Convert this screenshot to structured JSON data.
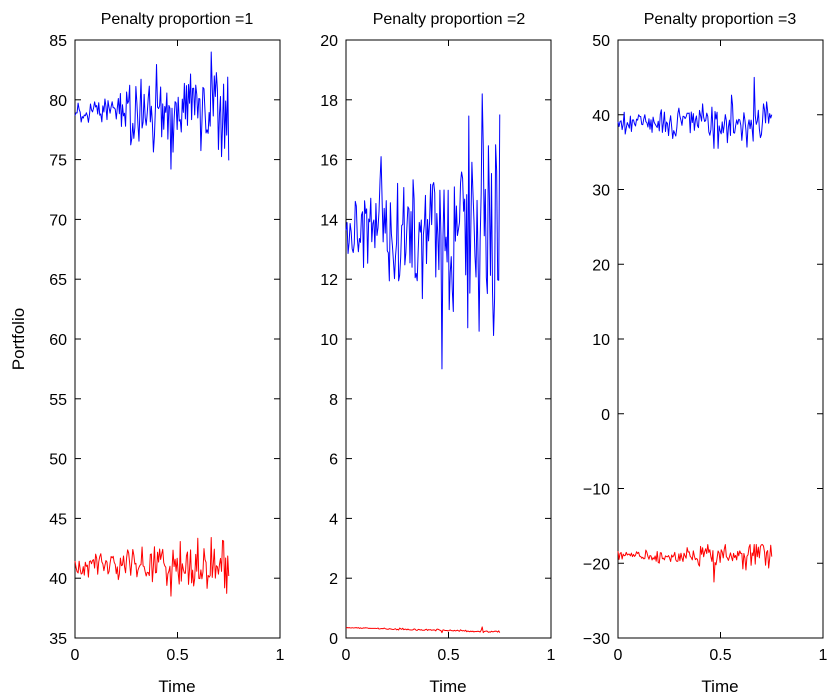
{
  "chart_data": [
    {
      "type": "line",
      "title": "Penalty proportion =1",
      "xlabel": "Time",
      "ylabel": "Portfolio",
      "xlim": [
        0,
        1
      ],
      "ylim": [
        35,
        85
      ],
      "xticks": [
        "0",
        "0.5",
        "1"
      ],
      "yticks": [
        "35",
        "40",
        "45",
        "50",
        "55",
        "60",
        "65",
        "70",
        "75",
        "80",
        "85"
      ],
      "grid": false,
      "series": [
        {
          "color": "#0000ff",
          "x_range": [
            0,
            0.75
          ],
          "points": 150,
          "level": 78.9,
          "noise_start": 0.6,
          "noise_end": 2.4,
          "min": 74.2,
          "max": 84.0
        },
        {
          "color": "#ff0000",
          "x_range": [
            0,
            0.75
          ],
          "points": 150,
          "level": 41.0,
          "noise_start": 0.4,
          "noise_end": 1.3,
          "min": 38.5,
          "max": 43.4
        }
      ]
    },
    {
      "type": "line",
      "title": "Penalty proportion =2",
      "xlabel": "Time",
      "ylabel": "",
      "xlim": [
        0,
        1
      ],
      "ylim": [
        0,
        20
      ],
      "xticks": [
        "0",
        "0.5",
        "1"
      ],
      "yticks": [
        "0",
        "2",
        "4",
        "6",
        "8",
        "10",
        "12",
        "14",
        "16",
        "18",
        "20"
      ],
      "grid": false,
      "series": [
        {
          "color": "#0000ff",
          "x_range": [
            0,
            0.75
          ],
          "points": 150,
          "level": 13.7,
          "noise_start": 0.5,
          "noise_end": 1.9,
          "min": 9.0,
          "max": 18.2
        },
        {
          "color": "#ff0000",
          "x_range": [
            0,
            0.75
          ],
          "points": 150,
          "level_start": 0.35,
          "level_end": 0.2,
          "noise_start": 0.01,
          "noise_end": 0.02,
          "min": 0.18,
          "max": 0.37
        }
      ]
    },
    {
      "type": "line",
      "title": "Penalty proportion =3",
      "xlabel": "Time",
      "ylabel": "",
      "xlim": [
        0,
        1
      ],
      "ylim": [
        -30,
        50
      ],
      "xticks": [
        "0",
        "0.5",
        "1"
      ],
      "yticks": [
        "−30",
        "−20",
        "−10",
        "0",
        "10",
        "20",
        "30",
        "40",
        "50"
      ],
      "grid": false,
      "series": [
        {
          "color": "#0000ff",
          "x_range": [
            0,
            0.75
          ],
          "points": 150,
          "level": 39.0,
          "noise_start": 0.6,
          "noise_end": 1.8,
          "min": 35.5,
          "max": 45.0
        },
        {
          "color": "#ff0000",
          "x_range": [
            0,
            0.75
          ],
          "points": 150,
          "level": -19.0,
          "noise_start": 0.4,
          "noise_end": 1.0,
          "min": -22.5,
          "max": -17.5
        }
      ]
    }
  ]
}
